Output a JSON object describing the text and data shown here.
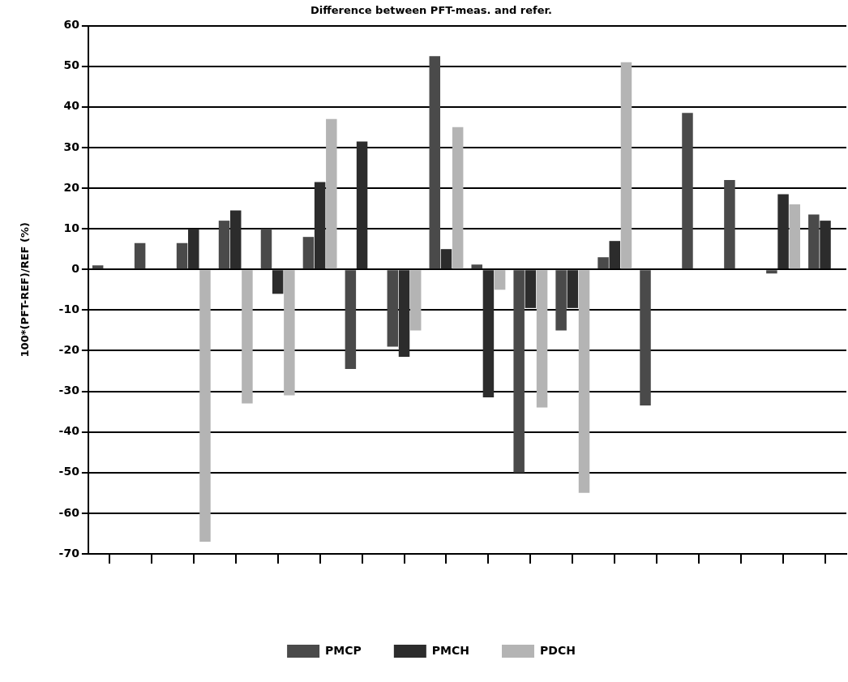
{
  "chart_data": {
    "type": "bar",
    "title": "Difference between PFT-meas. and refer.",
    "ylabel": "100*(PFT-REF)/REF (%)",
    "categories": [
      null,
      null,
      null,
      null,
      null,
      null,
      null,
      null,
      null,
      null,
      null,
      null,
      null,
      null,
      null,
      null,
      null,
      null
    ],
    "series": [
      {
        "name": "PMCP",
        "color": "#4a4a4a",
        "values": [
          1,
          6.5,
          6.5,
          12,
          10,
          8,
          -24.5,
          -19,
          52.5,
          1.2,
          -50,
          -15,
          3,
          -33.5,
          38.5,
          22,
          -1,
          13.5
        ]
      },
      {
        "name": "PMCH",
        "color": "#2c2c2c",
        "values": [
          null,
          null,
          10,
          14.5,
          -6,
          21.5,
          31.5,
          -21.5,
          5,
          -31.5,
          -9.5,
          -9.5,
          7,
          null,
          null,
          null,
          18.5,
          12
        ]
      },
      {
        "name": "PDCH",
        "color": "#b4b4b4",
        "values": [
          null,
          null,
          -67,
          -33,
          -31,
          37,
          null,
          -15,
          35,
          -5,
          -34,
          -55,
          51,
          null,
          null,
          null,
          16,
          null
        ]
      }
    ],
    "ylim": [
      -70,
      60
    ],
    "yticks": [
      -70,
      -60,
      -50,
      -40,
      -30,
      -20,
      -10,
      0,
      10,
      20,
      30,
      40,
      50,
      60
    ],
    "grid": "y",
    "legend": "bottom",
    "tick_labels": "y"
  }
}
